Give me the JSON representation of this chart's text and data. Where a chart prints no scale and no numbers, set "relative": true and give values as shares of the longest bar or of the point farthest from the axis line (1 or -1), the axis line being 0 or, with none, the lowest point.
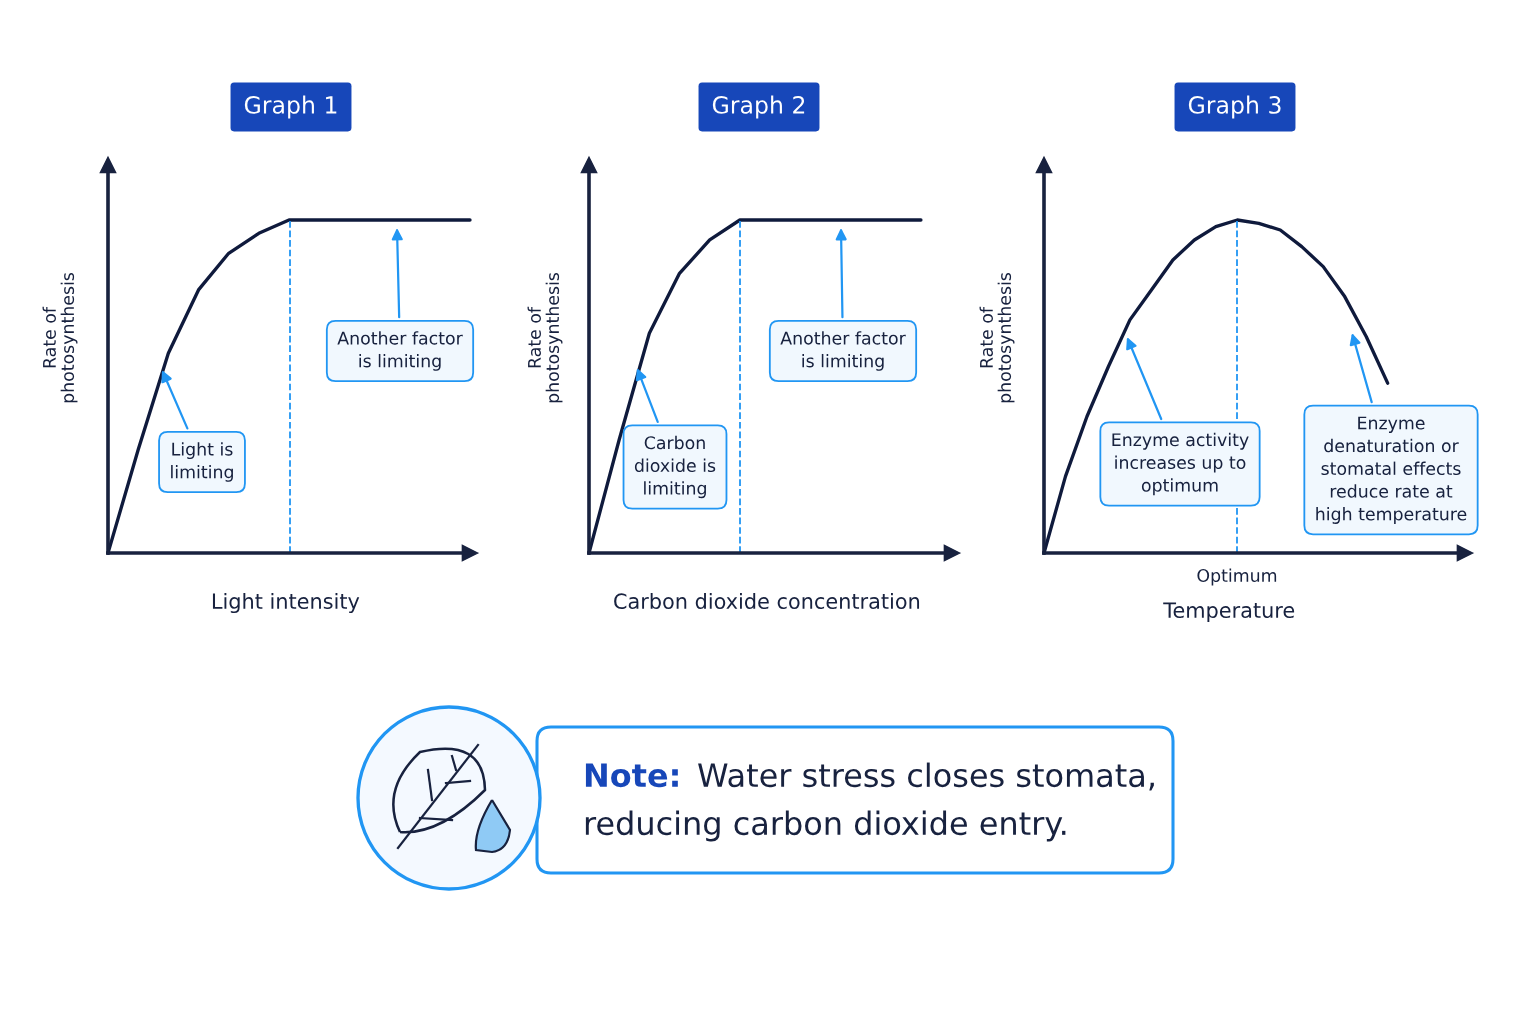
{
  "chart_data": [
    {
      "type": "line",
      "title": "Graph 1",
      "xlabel": "Light intensity",
      "ylabel": "Rate of\nphotosynthesis",
      "relative": true,
      "categories": [
        null,
        null,
        null,
        null,
        null,
        null,
        null,
        null,
        null,
        null,
        null,
        null,
        null
      ],
      "series": [
        {
          "color": "#0f1a3c",
          "values": [
            0,
            0.31,
            0.6,
            0.79,
            0.9,
            0.96,
            1,
            1,
            1,
            1,
            1,
            1,
            1
          ]
        }
      ],
      "annotations": [
        "Light is\nlimiting",
        "Another factor\nis limiting"
      ],
      "legend": false,
      "marker": "none",
      "line_style": "solid"
    },
    {
      "type": "line",
      "title": "Graph 2",
      "xlabel": "Carbon dioxide concentration",
      "ylabel": "Rate of\nphotosynthesis",
      "relative": true,
      "categories": [
        null,
        null,
        null,
        null,
        null,
        null,
        null,
        null,
        null,
        null,
        null,
        null
      ],
      "series": [
        {
          "color": "#0f1a3c",
          "values": [
            0,
            0.34,
            0.66,
            0.84,
            0.94,
            1,
            1,
            1,
            1,
            1,
            1,
            1
          ]
        }
      ],
      "annotations": [
        "Carbon\ndioxide is\nlimiting",
        "Another factor\nis limiting"
      ],
      "legend": false,
      "marker": "none",
      "line_style": "solid"
    },
    {
      "type": "line",
      "title": "Graph 3",
      "xlabel": "Temperature",
      "ylabel": "Rate of\nphotosynthesis",
      "relative": true,
      "categories": [
        null,
        null,
        null,
        null,
        null,
        null,
        null,
        null,
        null,
        null,
        null,
        null,
        null,
        null,
        null,
        null,
        null
      ],
      "series": [
        {
          "color": "#0f1a3c",
          "values": [
            0,
            0.23,
            0.41,
            0.56,
            0.7,
            0.79,
            0.88,
            0.94,
            0.98,
            1,
            0.99,
            0.97,
            0.92,
            0.86,
            0.77,
            0.65,
            0.51
          ]
        }
      ],
      "annotations": [
        "Enzyme activity\nincreases up to\noptimum",
        "Enzyme\ndenaturation or\nstomatal effects\nreduce rate at\nhigh temperature",
        "Optimum"
      ],
      "legend": false,
      "marker": "none",
      "line_style": "solid"
    },
    {
      "type": "other",
      "annotations": [
        "Note:",
        "Water stress closes stomata,",
        "reducing carbon dioxide entry."
      ]
    }
  ]
}
